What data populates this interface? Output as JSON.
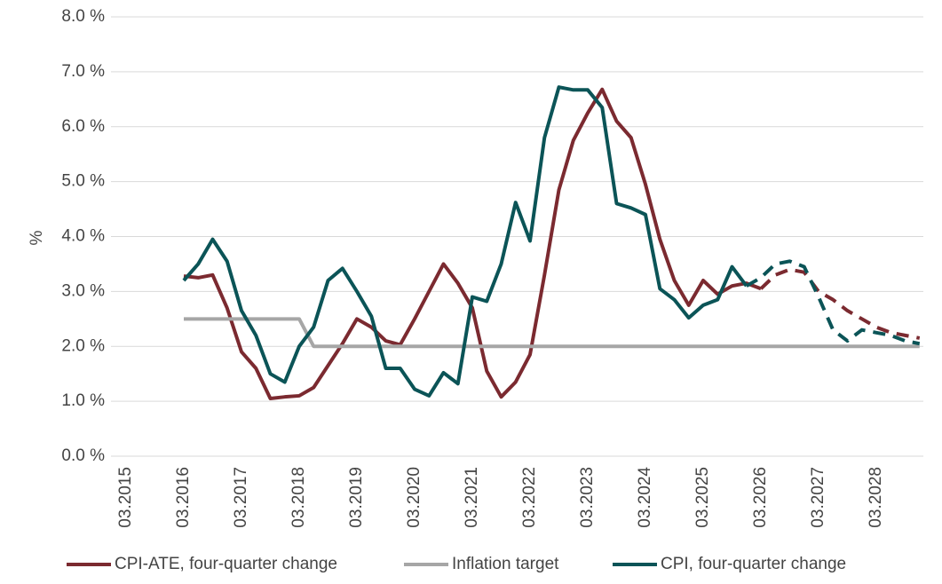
{
  "chart_data": {
    "type": "line",
    "ylabel": "%",
    "ylim": [
      0,
      8
    ],
    "yticks": [
      {
        "value": 0,
        "label": "0.0 %"
      },
      {
        "value": 1,
        "label": "1.0 %"
      },
      {
        "value": 2,
        "label": "2.0 %"
      },
      {
        "value": 3,
        "label": "3.0 %"
      },
      {
        "value": 4,
        "label": "4.0 %"
      },
      {
        "value": 5,
        "label": "5.0 %"
      },
      {
        "value": 6,
        "label": "6.0 %"
      },
      {
        "value": 7,
        "label": "7.0 %"
      },
      {
        "value": 8,
        "label": "8.0 %"
      }
    ],
    "grid": true,
    "legend": "bottom",
    "categories": [
      "03.2015",
      null,
      null,
      null,
      "03.2016",
      null,
      null,
      null,
      "03.2017",
      null,
      null,
      null,
      "03.2018",
      null,
      null,
      null,
      "03.2019",
      null,
      null,
      null,
      "03.2020",
      null,
      null,
      null,
      "03.2021",
      null,
      null,
      null,
      "03.2022",
      null,
      null,
      null,
      "03.2023",
      null,
      null,
      null,
      "03.2024",
      null,
      null,
      null,
      "03.2025",
      null,
      null,
      null,
      "03.2026",
      null,
      null,
      null,
      "03.2027",
      null,
      null,
      null,
      "03.2028",
      null,
      null,
      null
    ],
    "series": [
      {
        "name": "CPI-ATE, four-quarter change",
        "color": "#7b2a30",
        "dashed_from": 44,
        "values": [
          null,
          null,
          null,
          null,
          3.28,
          3.25,
          3.3,
          2.7,
          1.9,
          1.6,
          1.05,
          1.08,
          1.1,
          1.25,
          1.65,
          2.05,
          2.5,
          2.35,
          2.1,
          2.03,
          2.5,
          3.0,
          3.5,
          3.15,
          2.7,
          1.55,
          1.08,
          1.35,
          1.85,
          3.3,
          4.85,
          5.75,
          6.25,
          6.68,
          6.1,
          5.8,
          4.95,
          3.95,
          3.2,
          2.75,
          3.2,
          2.95,
          3.1,
          3.15,
          3.05,
          3.3,
          3.4,
          3.35,
          3.0,
          2.85,
          2.65,
          2.5,
          2.35,
          2.25,
          2.2,
          2.15
        ]
      },
      {
        "name": "Inflation target",
        "color": "#a6a6a6",
        "values": [
          null,
          null,
          null,
          null,
          2.5,
          2.5,
          2.5,
          2.5,
          2.5,
          2.5,
          2.5,
          2.5,
          2.5,
          2.0,
          2.0,
          2.0,
          2.0,
          2.0,
          2.0,
          2.0,
          2.0,
          2.0,
          2.0,
          2.0,
          2.0,
          2.0,
          2.0,
          2.0,
          2.0,
          2.0,
          2.0,
          2.0,
          2.0,
          2.0,
          2.0,
          2.0,
          2.0,
          2.0,
          2.0,
          2.0,
          2.0,
          2.0,
          2.0,
          2.0,
          2.0,
          2.0,
          2.0,
          2.0,
          2.0,
          2.0,
          2.0,
          2.0,
          2.0,
          2.0,
          2.0,
          2.0
        ]
      },
      {
        "name": "CPI, four-quarter change",
        "color": "#0b5457",
        "dashed_from": 43,
        "values": [
          null,
          null,
          null,
          null,
          3.2,
          3.5,
          3.95,
          3.55,
          2.65,
          2.2,
          1.5,
          1.35,
          2.0,
          2.35,
          3.2,
          3.42,
          3.0,
          2.55,
          1.6,
          1.6,
          1.22,
          1.1,
          1.52,
          1.32,
          2.9,
          2.82,
          3.5,
          4.62,
          3.92,
          5.8,
          6.72,
          6.67,
          6.67,
          6.35,
          4.6,
          4.52,
          4.4,
          3.05,
          2.85,
          2.52,
          2.75,
          2.85,
          3.45,
          3.1,
          3.25,
          3.5,
          3.55,
          3.45,
          2.9,
          2.3,
          2.1,
          2.3,
          2.25,
          2.2,
          2.1,
          2.05
        ]
      }
    ]
  }
}
